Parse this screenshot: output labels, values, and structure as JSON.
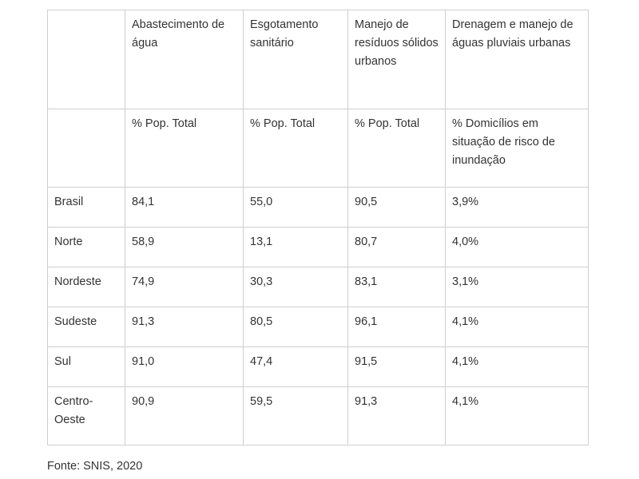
{
  "table": {
    "header": [
      "",
      "Abastecimento de água",
      "Esgotamento sanitário",
      "Manejo de resíduos sólidos urbanos",
      "Drenagem e manejo de águas pluviais urbanas"
    ],
    "subheader": [
      "",
      "% Pop. Total",
      "% Pop. Total",
      "% Pop. Total",
      "% Domicílios em situação de risco de inundação"
    ],
    "rows": [
      [
        "Brasil",
        "84,1",
        "55,0",
        "90,5",
        "3,9%"
      ],
      [
        "Norte",
        "58,9",
        "13,1",
        "80,7",
        "4,0%"
      ],
      [
        "Nordeste",
        "74,9",
        "30,3",
        "83,1",
        "3,1%"
      ],
      [
        "Sudeste",
        "91,3",
        "80,5",
        "96,1",
        "4,1%"
      ],
      [
        "Sul",
        "91,0",
        "47,4",
        "91,5",
        "4,1%"
      ],
      [
        "Centro-Oeste",
        "90,9",
        "59,5",
        "91,3",
        "4,1%"
      ]
    ]
  },
  "source": "Fonte: SNIS, 2020"
}
